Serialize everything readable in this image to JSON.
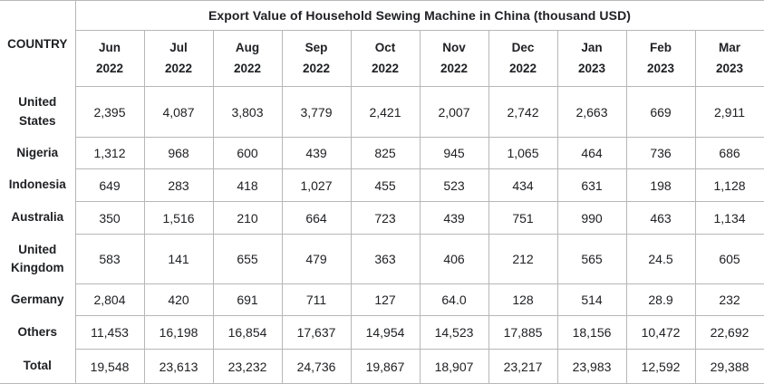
{
  "table": {
    "title": "Export Value of Household Sewing Machine in China (thousand USD)",
    "corner_label": "COUNTRY",
    "columns": [
      {
        "month": "Jun",
        "year": "2022"
      },
      {
        "month": "Jul",
        "year": "2022"
      },
      {
        "month": "Aug",
        "year": "2022"
      },
      {
        "month": "Sep",
        "year": "2022"
      },
      {
        "month": "Oct",
        "year": "2022"
      },
      {
        "month": "Nov",
        "year": "2022"
      },
      {
        "month": "Dec",
        "year": "2022"
      },
      {
        "month": "Jan",
        "year": "2023"
      },
      {
        "month": "Feb",
        "year": "2023"
      },
      {
        "month": "Mar",
        "year": "2023"
      }
    ],
    "rows": [
      {
        "country": "United States",
        "values": [
          "2,395",
          "4,087",
          "3,803",
          "3,779",
          "2,421",
          "2,007",
          "2,742",
          "2,663",
          "669",
          "2,911"
        ]
      },
      {
        "country": "Nigeria",
        "values": [
          "1,312",
          "968",
          "600",
          "439",
          "825",
          "945",
          "1,065",
          "464",
          "736",
          "686"
        ]
      },
      {
        "country": "Indonesia",
        "values": [
          "649",
          "283",
          "418",
          "1,027",
          "455",
          "523",
          "434",
          "631",
          "198",
          "1,128"
        ]
      },
      {
        "country": "Australia",
        "values": [
          "350",
          "1,516",
          "210",
          "664",
          "723",
          "439",
          "751",
          "990",
          "463",
          "1,134"
        ]
      },
      {
        "country": "United Kingdom",
        "values": [
          "583",
          "141",
          "655",
          "479",
          "363",
          "406",
          "212",
          "565",
          "24.5",
          "605"
        ]
      },
      {
        "country": "Germany",
        "values": [
          "2,804",
          "420",
          "691",
          "711",
          "127",
          "64.0",
          "128",
          "514",
          "28.9",
          "232"
        ]
      },
      {
        "country": "Others",
        "values": [
          "11,453",
          "16,198",
          "16,854",
          "17,637",
          "14,954",
          "14,523",
          "17,885",
          "18,156",
          "10,472",
          "22,692"
        ]
      },
      {
        "country": "Total",
        "values": [
          "19,548",
          "23,613",
          "23,232",
          "24,736",
          "19,867",
          "18,907",
          "23,217",
          "23,983",
          "12,592",
          "29,388"
        ]
      }
    ]
  },
  "colors": {
    "border": "#b7b7b7",
    "text": "#202124"
  },
  "chart_data": {
    "type": "table",
    "title": "Export Value of Household Sewing Machine in China (thousand USD)",
    "unit": "thousand USD",
    "categories": [
      "Jun 2022",
      "Jul 2022",
      "Aug 2022",
      "Sep 2022",
      "Oct 2022",
      "Nov 2022",
      "Dec 2022",
      "Jan 2023",
      "Feb 2023",
      "Mar 2023"
    ],
    "series": [
      {
        "name": "United States",
        "values": [
          2395,
          4087,
          3803,
          3779,
          2421,
          2007,
          2742,
          2663,
          669,
          2911
        ]
      },
      {
        "name": "Nigeria",
        "values": [
          1312,
          968,
          600,
          439,
          825,
          945,
          1065,
          464,
          736,
          686
        ]
      },
      {
        "name": "Indonesia",
        "values": [
          649,
          283,
          418,
          1027,
          455,
          523,
          434,
          631,
          198,
          1128
        ]
      },
      {
        "name": "Australia",
        "values": [
          350,
          1516,
          210,
          664,
          723,
          439,
          751,
          990,
          463,
          1134
        ]
      },
      {
        "name": "United Kingdom",
        "values": [
          583,
          141,
          655,
          479,
          363,
          406,
          212,
          565,
          24.5,
          605
        ]
      },
      {
        "name": "Germany",
        "values": [
          2804,
          420,
          691,
          711,
          127,
          64.0,
          128,
          514,
          28.9,
          232
        ]
      },
      {
        "name": "Others",
        "values": [
          11453,
          16198,
          16854,
          17637,
          14954,
          14523,
          17885,
          18156,
          10472,
          22692
        ]
      },
      {
        "name": "Total",
        "values": [
          19548,
          23613,
          23232,
          24736,
          19867,
          18907,
          23217,
          23983,
          12592,
          29388
        ]
      }
    ]
  }
}
